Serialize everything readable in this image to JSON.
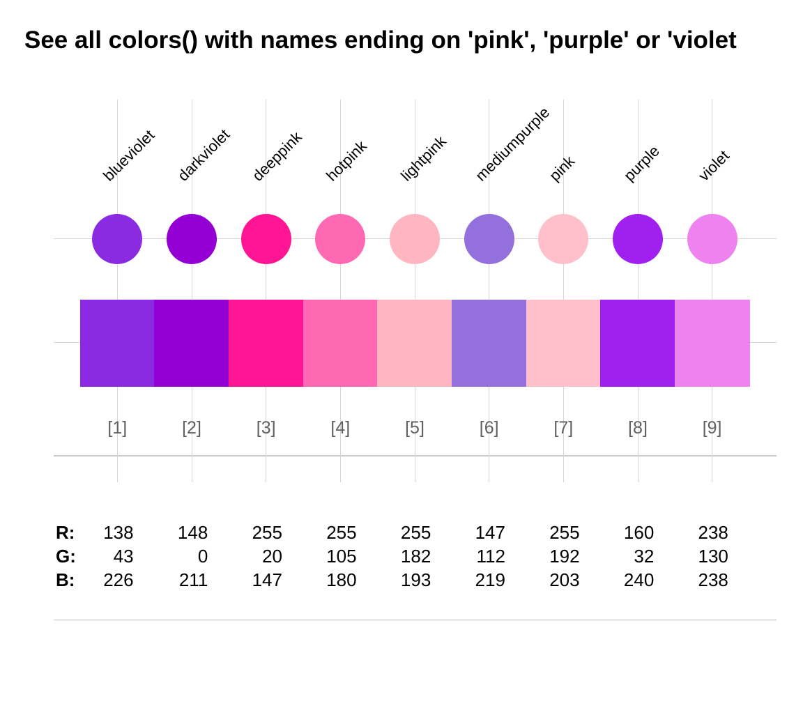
{
  "title": "See all colors() with names ending on 'pink', 'purple' or 'violet",
  "rgb_rows": {
    "r_label": "R:",
    "g_label": "G:",
    "b_label": "B:"
  },
  "columns": [
    {
      "name": "blueviolet",
      "index": "[1]",
      "hex": "#8A2BE2",
      "r": "138",
      "g": "43",
      "b": "226"
    },
    {
      "name": "darkviolet",
      "index": "[2]",
      "hex": "#9400D3",
      "r": "148",
      "g": "0",
      "b": "211"
    },
    {
      "name": "deeppink",
      "index": "[3]",
      "hex": "#FF1493",
      "r": "255",
      "g": "20",
      "b": "147"
    },
    {
      "name": "hotpink",
      "index": "[4]",
      "hex": "#FF69B4",
      "r": "255",
      "g": "105",
      "b": "180"
    },
    {
      "name": "lightpink",
      "index": "[5]",
      "hex": "#FFB6C1",
      "r": "255",
      "g": "182",
      "b": "193"
    },
    {
      "name": "mediumpurple",
      "index": "[6]",
      "hex": "#9370DB",
      "r": "147",
      "g": "112",
      "b": "219"
    },
    {
      "name": "pink",
      "index": "[7]",
      "hex": "#FFC0CB",
      "r": "255",
      "g": "192",
      "b": "203"
    },
    {
      "name": "purple",
      "index": "[8]",
      "hex": "#A020F0",
      "r": "160",
      "g": "32",
      "b": "240"
    },
    {
      "name": "violet",
      "index": "[9]",
      "hex": "#EE82EE",
      "r": "238",
      "g": "130",
      "b": "238"
    }
  ],
  "chart_data": {
    "type": "table",
    "title": "See all colors() with names ending on 'pink', 'purple' or 'violet",
    "categories": [
      "blueviolet",
      "darkviolet",
      "deeppink",
      "hotpink",
      "lightpink",
      "mediumpurple",
      "pink",
      "purple",
      "violet"
    ],
    "index_labels": [
      "[1]",
      "[2]",
      "[3]",
      "[4]",
      "[5]",
      "[6]",
      "[7]",
      "[8]",
      "[9]"
    ],
    "swatch_hex": [
      "#8A2BE2",
      "#9400D3",
      "#FF1493",
      "#FF69B4",
      "#FFB6C1",
      "#9370DB",
      "#FFC0CB",
      "#A020F0",
      "#EE82EE"
    ],
    "series": [
      {
        "name": "R",
        "values": [
          138,
          148,
          255,
          255,
          255,
          147,
          255,
          160,
          238
        ]
      },
      {
        "name": "G",
        "values": [
          43,
          0,
          20,
          105,
          182,
          112,
          192,
          32,
          130
        ]
      },
      {
        "name": "B",
        "values": [
          226,
          211,
          147,
          180,
          193,
          219,
          203,
          240,
          238
        ]
      }
    ],
    "layout_hints": {
      "grid": true,
      "rows": [
        "rotated color-name labels",
        "colored circles",
        "continuous swatch bar",
        "bracketed indices",
        "RGB value table"
      ]
    }
  }
}
